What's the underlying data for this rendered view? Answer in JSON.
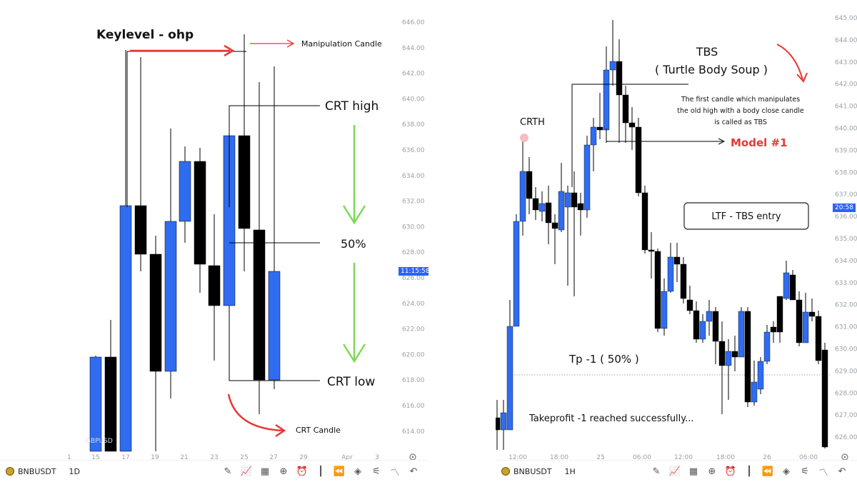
{
  "left": {
    "annotations": {
      "keylevel": "Keylevel - ohp",
      "manipulation": "Manipulation Candle",
      "crt_high": "CRT high",
      "fifty": "50%",
      "crt_low": "CRT low",
      "crt_candle": "CRT Candle"
    },
    "watermark": "GBPUSD",
    "price_axis": [
      "646.00",
      "644.00",
      "642.00",
      "640.00",
      "638.00",
      "636.00",
      "634.00",
      "632.00",
      "630.00",
      "628.00",
      "626.00",
      "624.00",
      "622.00",
      "620.00",
      "618.00",
      "616.00",
      "614.00"
    ],
    "time_axis": [
      "1",
      "15",
      "17",
      "19",
      "21",
      "23",
      "25",
      "27",
      "29",
      "Apr",
      "3"
    ],
    "current_time": "11:15:58",
    "toolbar": {
      "symbol": "BNBUSDT",
      "timeframe": "1D"
    },
    "colors": {
      "bull": "#2f6cf0",
      "bear": "#000000",
      "arrow_red": "#e53935",
      "arrow_green": "#7ed957"
    }
  },
  "right": {
    "annotations": {
      "tbs_title": "TBS",
      "tbs_sub": "( Turtle Body Soup )",
      "desc_1": "The first candle which manipulates",
      "desc_2": "the old high with a body close candle",
      "desc_3": "is called as TBS",
      "crth": "CRTH",
      "model": "Model #1",
      "ltf": "LTF - TBS entry",
      "tp": "Tp -1 ( 50% )",
      "takeprofit": "Takeprofit -1 reached successfully..."
    },
    "price_axis": [
      "645.00",
      "644.00",
      "643.00",
      "642.00",
      "641.00",
      "640.00",
      "639.00",
      "638.00",
      "637.00",
      "636.00",
      "635.00",
      "634.00",
      "633.00",
      "632.00",
      "631.00",
      "630.00",
      "629.00",
      "628.00",
      "627.00",
      "626.00"
    ],
    "time_axis": [
      "12:00",
      "18:00",
      "25",
      "06:00",
      "12:00",
      "18:00",
      "26",
      "06:00"
    ],
    "current_time": "20:58",
    "toolbar": {
      "symbol": "BNBUSDT",
      "timeframe": "1H"
    },
    "colors": {
      "model_red": "#e53935"
    }
  }
}
